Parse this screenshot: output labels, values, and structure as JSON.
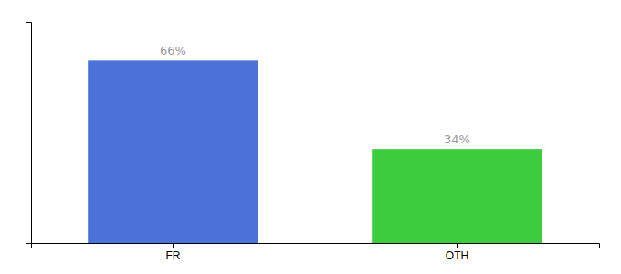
{
  "chart_data": {
    "type": "bar",
    "categories": [
      "FR",
      "OTH"
    ],
    "values": [
      66,
      34
    ],
    "colors": [
      "#4a72d9",
      "#3dcc3d"
    ],
    "value_labels": [
      "66%",
      "34%"
    ],
    "data_labels": true,
    "ylim": [
      0,
      80
    ],
    "tick_labels": "x",
    "grid": false
  }
}
